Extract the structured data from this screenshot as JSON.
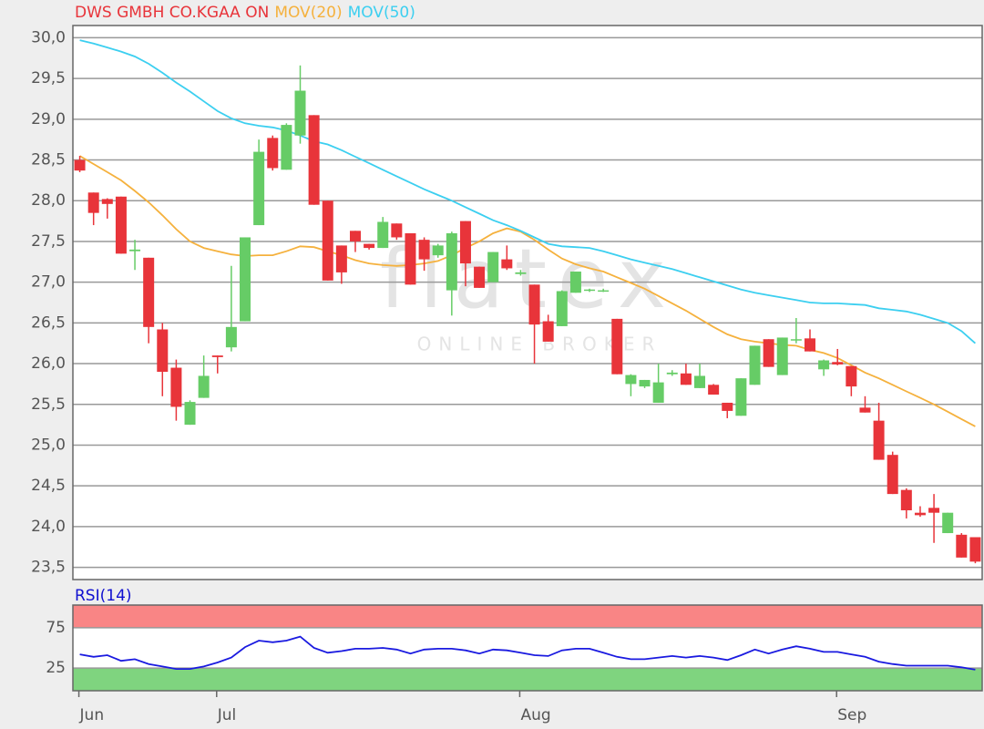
{
  "chart_data": [
    {
      "type": "candlestick",
      "title": "DWS GMBH CO.KGAA ON",
      "watermark": "flatex",
      "watermark_subtitle": "ONLINE BROKER",
      "categories": [
        "Jun",
        null,
        null,
        null,
        null,
        null,
        null,
        null,
        null,
        null,
        "Jul",
        null,
        null,
        null,
        null,
        null,
        null,
        null,
        null,
        null,
        null,
        null,
        null,
        null,
        null,
        null,
        null,
        null,
        null,
        null,
        null,
        null,
        "Aug",
        null,
        null,
        null,
        null,
        null,
        null,
        null,
        null,
        null,
        null,
        null,
        null,
        null,
        null,
        null,
        null,
        null,
        null,
        null,
        null,
        null,
        null,
        "Sep",
        null,
        null,
        null,
        null,
        null,
        null,
        null,
        null,
        null,
        null
      ],
      "open": [
        28.5,
        28.1,
        28.02,
        28.05,
        27.38,
        27.3,
        26.42,
        25.95,
        25.25,
        25.58,
        26.1,
        26.2,
        26.52,
        27.7,
        28.77,
        28.38,
        28.8,
        29.05,
        28.0,
        27.45,
        27.63,
        27.47,
        27.42,
        27.72,
        27.6,
        27.52,
        27.33,
        26.9,
        27.75,
        27.19,
        27.0,
        27.28,
        27.1,
        26.97,
        26.52,
        26.46,
        26.87,
        26.9,
        26.89,
        26.55,
        25.75,
        25.72,
        25.52,
        25.87,
        25.88,
        25.7,
        25.74,
        25.52,
        25.36,
        25.74,
        26.3,
        25.86,
        26.29,
        26.31,
        25.93,
        26.02,
        25.97,
        25.46,
        25.3,
        24.88,
        24.45,
        24.17,
        24.23,
        23.92,
        23.9,
        23.87
      ],
      "high": [
        28.55,
        28.1,
        28.03,
        28.05,
        27.52,
        27.3,
        26.5,
        26.05,
        25.55,
        26.1,
        26.1,
        27.2,
        27.55,
        28.75,
        28.8,
        28.95,
        29.66,
        29.05,
        28.0,
        27.45,
        27.63,
        27.47,
        27.8,
        27.72,
        27.6,
        27.55,
        27.47,
        27.62,
        27.75,
        27.19,
        27.37,
        27.45,
        27.15,
        26.97,
        26.6,
        26.9,
        27.13,
        26.92,
        26.92,
        26.55,
        25.87,
        25.8,
        26.0,
        25.92,
        26.0,
        26.0,
        25.75,
        25.52,
        25.82,
        26.22,
        26.3,
        26.32,
        26.56,
        26.42,
        26.05,
        26.18,
        25.97,
        25.6,
        25.52,
        24.92,
        24.47,
        24.25,
        24.4,
        24.17,
        23.92,
        23.87
      ],
      "low": [
        28.35,
        27.7,
        27.78,
        27.35,
        27.15,
        26.25,
        25.6,
        25.3,
        25.25,
        25.58,
        25.88,
        26.15,
        26.52,
        27.7,
        28.37,
        28.38,
        28.7,
        27.95,
        27.02,
        26.98,
        27.37,
        27.4,
        27.42,
        27.52,
        26.97,
        27.14,
        27.3,
        26.59,
        26.95,
        26.93,
        27.0,
        27.15,
        27.08,
        26.0,
        26.27,
        26.46,
        26.87,
        26.88,
        26.88,
        25.87,
        25.6,
        25.7,
        25.52,
        25.85,
        25.74,
        25.7,
        25.62,
        25.33,
        25.36,
        25.74,
        25.96,
        25.86,
        26.25,
        26.15,
        25.85,
        25.98,
        25.6,
        25.4,
        24.82,
        24.4,
        24.1,
        24.12,
        23.8,
        23.92,
        23.62,
        23.55
      ],
      "close": [
        28.37,
        27.85,
        27.96,
        27.35,
        27.4,
        26.45,
        25.9,
        25.47,
        25.53,
        25.85,
        26.08,
        26.45,
        27.55,
        28.6,
        28.4,
        28.93,
        29.35,
        27.95,
        27.02,
        27.12,
        27.5,
        27.42,
        27.74,
        27.55,
        26.97,
        27.28,
        27.45,
        27.6,
        27.23,
        26.93,
        27.37,
        27.17,
        27.12,
        26.48,
        26.27,
        26.89,
        27.13,
        26.91,
        26.9,
        25.87,
        25.86,
        25.8,
        25.77,
        25.89,
        25.74,
        25.85,
        25.62,
        25.42,
        25.82,
        26.22,
        25.96,
        26.32,
        26.3,
        26.15,
        26.04,
        25.99,
        25.72,
        25.4,
        24.82,
        24.4,
        24.2,
        24.14,
        24.17,
        24.17,
        23.62,
        23.57
      ],
      "up_color": "#66cc66",
      "down_color": "#e8343a",
      "series": [
        {
          "name": "MOV(20)",
          "color": "#f5b13d",
          "values": [
            28.55,
            28.45,
            28.35,
            28.25,
            28.12,
            27.98,
            27.82,
            27.65,
            27.5,
            27.42,
            27.38,
            27.34,
            27.32,
            27.33,
            27.33,
            27.38,
            27.44,
            27.43,
            27.38,
            27.33,
            27.27,
            27.23,
            27.21,
            27.2,
            27.21,
            27.23,
            27.26,
            27.33,
            27.42,
            27.5,
            27.6,
            27.66,
            27.62,
            27.52,
            27.4,
            27.29,
            27.22,
            27.17,
            27.13,
            27.06,
            26.99,
            26.92,
            26.83,
            26.74,
            26.65,
            26.55,
            26.45,
            26.36,
            26.3,
            26.27,
            26.25,
            26.23,
            26.22,
            26.17,
            26.13,
            26.07,
            25.98,
            25.89,
            25.82,
            25.74,
            25.66,
            25.58,
            25.5,
            25.41,
            25.32,
            25.23
          ]
        },
        {
          "name": "MOV(50)",
          "color": "#3ccff0",
          "values": [
            29.97,
            29.93,
            29.88,
            29.83,
            29.77,
            29.68,
            29.57,
            29.45,
            29.34,
            29.22,
            29.1,
            29.01,
            28.95,
            28.92,
            28.9,
            28.86,
            28.8,
            28.73,
            28.69,
            28.62,
            28.54,
            28.46,
            28.38,
            28.3,
            28.22,
            28.14,
            28.07,
            28.0,
            27.92,
            27.84,
            27.76,
            27.7,
            27.63,
            27.55,
            27.47,
            27.44,
            27.43,
            27.42,
            27.38,
            27.33,
            27.28,
            27.24,
            27.2,
            27.16,
            27.11,
            27.06,
            27.01,
            26.96,
            26.91,
            26.87,
            26.84,
            26.81,
            26.78,
            26.75,
            26.74,
            26.74,
            26.73,
            26.72,
            26.68,
            26.66,
            26.64,
            26.6,
            26.55,
            26.5,
            26.4,
            26.25
          ]
        }
      ],
      "title_color": "#e8343a",
      "ylim": [
        23.35,
        30.15
      ],
      "yticks": [
        {
          "value": 23.5,
          "label": "23,5"
        },
        {
          "value": 24.0,
          "label": "24,0"
        },
        {
          "value": 24.5,
          "label": "24,5"
        },
        {
          "value": 25.0,
          "label": "25,0"
        },
        {
          "value": 25.5,
          "label": "25,5"
        },
        {
          "value": 26.0,
          "label": "26,0"
        },
        {
          "value": 26.5,
          "label": "26,5"
        },
        {
          "value": 27.0,
          "label": "27,0"
        },
        {
          "value": 27.5,
          "label": "27,5"
        },
        {
          "value": 28.0,
          "label": "28,0"
        },
        {
          "value": 28.5,
          "label": "28,5"
        },
        {
          "value": 29.0,
          "label": "29,0"
        },
        {
          "value": 29.5,
          "label": "29,5"
        },
        {
          "value": 30.0,
          "label": "30,0"
        }
      ],
      "grid": true
    },
    {
      "type": "line",
      "title": "RSI(14)",
      "title_color": "#1010d0",
      "series": [
        {
          "name": "RSI(14)",
          "color": "#1a1ae0",
          "values": [
            42,
            39,
            41,
            34,
            36,
            30,
            27,
            24,
            24,
            27,
            32,
            38,
            51,
            59,
            57,
            59,
            64,
            50,
            44,
            46,
            49,
            49,
            50,
            48,
            43,
            48,
            49,
            49,
            47,
            43,
            48,
            47,
            44,
            41,
            40,
            47,
            49,
            49,
            44,
            39,
            36,
            36,
            38,
            40,
            38,
            40,
            38,
            35,
            41,
            48,
            43,
            48,
            52,
            49,
            45,
            45,
            42,
            39,
            33,
            30,
            28,
            28,
            28,
            28,
            26,
            23
          ]
        }
      ],
      "ylim": [
        -3,
        103
      ],
      "yticks": [
        25,
        75
      ],
      "upper_zone_color": "#f98585",
      "lower_zone_color": "#7fd47f",
      "grid": true
    }
  ]
}
